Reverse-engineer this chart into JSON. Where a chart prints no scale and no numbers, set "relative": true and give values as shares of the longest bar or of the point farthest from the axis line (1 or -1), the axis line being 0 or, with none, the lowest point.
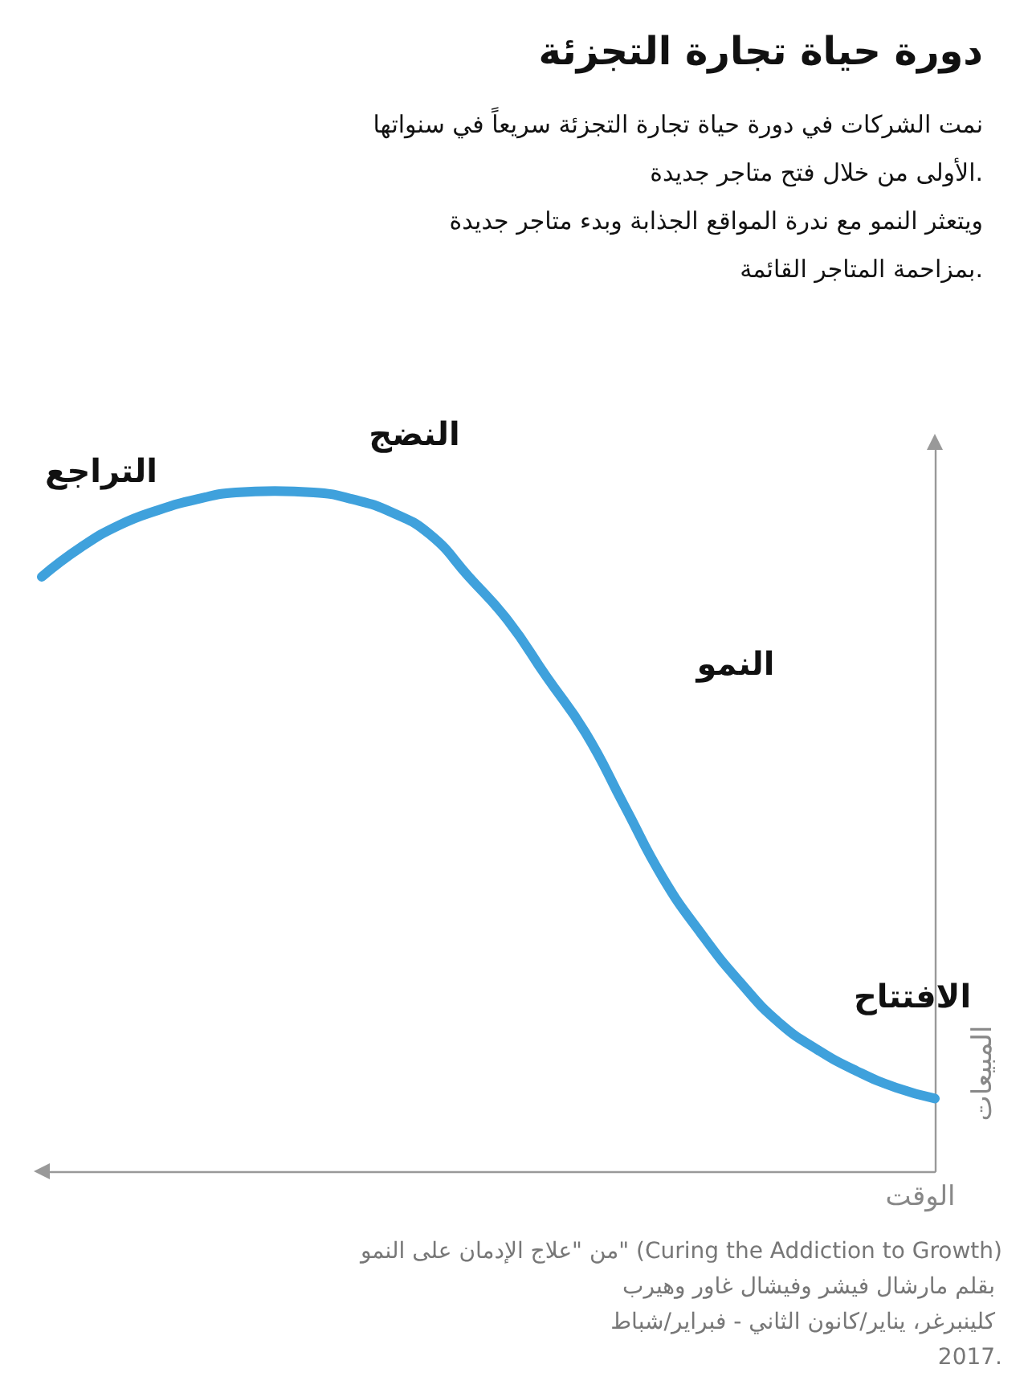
{
  "chart_data": {
    "type": "line",
    "title": "دورة حياة تجارة التجزئة",
    "subtitle": "نمت الشركات في دورة حياة تجارة التجزئة سريعاً في سنواتها\nالأولى من خلال فتح متاجر جديدة.\nويتعثر النمو مع ندرة المواقع الجذابة وبدء متاجر جديدة\nبمزاحمة المتاجر القائمة.",
    "xlabel": "الوقت",
    "ylabel": "المبيعات",
    "relative": true,
    "color": "#3fa1dc",
    "marker": "none",
    "grid": false,
    "categories": [
      null,
      null,
      null,
      null,
      null,
      null,
      null,
      null,
      null,
      null,
      null,
      null,
      null,
      null,
      null,
      null,
      null,
      null,
      null,
      null,
      null,
      null,
      null,
      null
    ],
    "values": [
      0.874,
      0.917,
      0.95,
      0.972,
      0.988,
      0.998,
      1,
      0.998,
      0.988,
      0.969,
      0.936,
      0.874,
      0.81,
      0.727,
      0.645,
      0.538,
      0.431,
      0.348,
      0.277,
      0.218,
      0.178,
      0.147,
      0.123,
      0.107
    ],
    "annotations": [
      "التراجع",
      "النضج",
      "النمو",
      "الافتتاح",
      "من \"علاج الإدمان على النمو\" (Curing the Addiction to Growth) بقلم مارشال فيشر وفيشال غاور وهيرب كلينبرغر، يناير/كانون الثاني - فبراير/شباط 2017."
    ]
  }
}
